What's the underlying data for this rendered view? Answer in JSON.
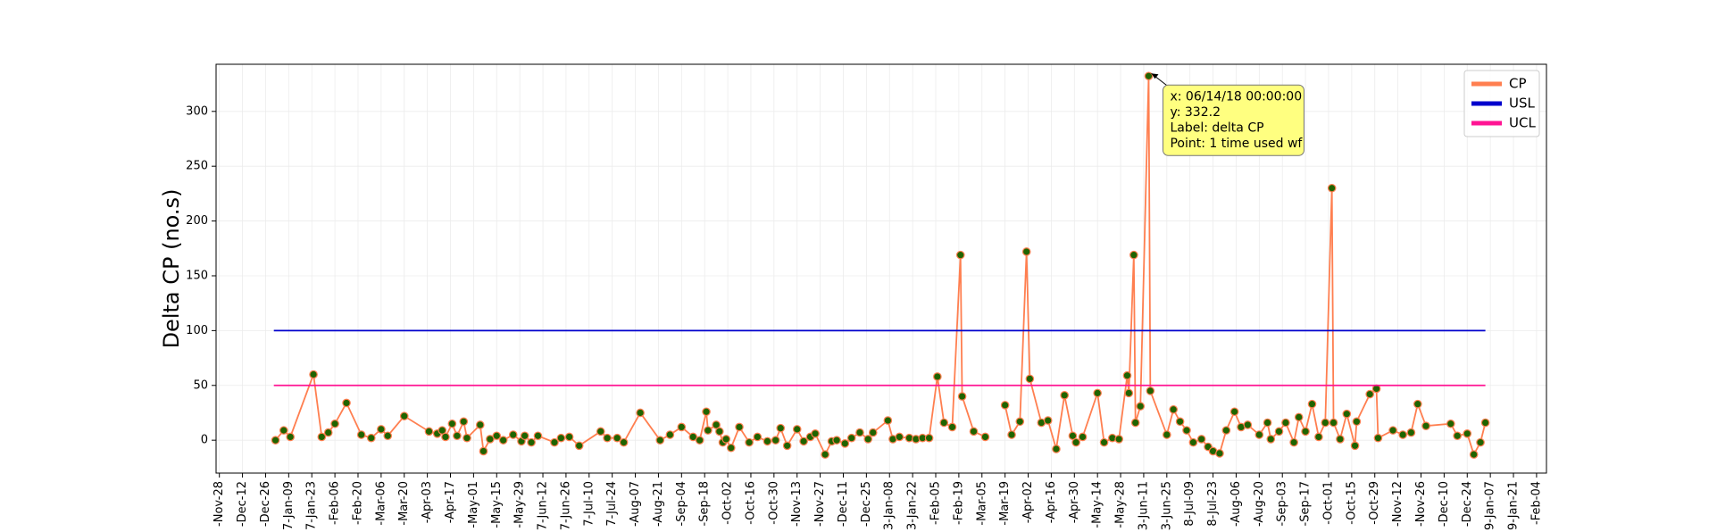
{
  "chart_data": {
    "type": "line",
    "y_label": "Delta CP (no.s)",
    "xlim": [
      -2,
      804
    ],
    "ylim": [
      -30,
      343
    ],
    "yticks": [
      0,
      50,
      100,
      150,
      200,
      250,
      300
    ],
    "xticks": [
      {
        "value": 0,
        "label": "-Nov-28"
      },
      {
        "value": 14,
        "label": "-Dec-12"
      },
      {
        "value": 28,
        "label": "-Dec-26"
      },
      {
        "value": 42,
        "label": "7-Jan-09"
      },
      {
        "value": 56,
        "label": "7-Jan-23"
      },
      {
        "value": 70,
        "label": "-Feb-06"
      },
      {
        "value": 84,
        "label": "-Feb-20"
      },
      {
        "value": 98,
        "label": "-Mar-06"
      },
      {
        "value": 112,
        "label": "-Mar-20"
      },
      {
        "value": 126,
        "label": "-Apr-03"
      },
      {
        "value": 140,
        "label": "-Apr-17"
      },
      {
        "value": 154,
        "label": "-May-01"
      },
      {
        "value": 168,
        "label": "-May-15"
      },
      {
        "value": 182,
        "label": "-May-29"
      },
      {
        "value": 196,
        "label": "7-Jun-12"
      },
      {
        "value": 210,
        "label": "7-Jun-26"
      },
      {
        "value": 224,
        "label": "7-Jul-10"
      },
      {
        "value": 238,
        "label": "7-Jul-24"
      },
      {
        "value": 252,
        "label": "-Aug-07"
      },
      {
        "value": 266,
        "label": "-Aug-21"
      },
      {
        "value": 280,
        "label": "-Sep-04"
      },
      {
        "value": 294,
        "label": "-Sep-18"
      },
      {
        "value": 308,
        "label": "-Oct-02"
      },
      {
        "value": 322,
        "label": "-Oct-16"
      },
      {
        "value": 336,
        "label": "-Oct-30"
      },
      {
        "value": 350,
        "label": "-Nov-13"
      },
      {
        "value": 364,
        "label": "-Nov-27"
      },
      {
        "value": 378,
        "label": "-Dec-11"
      },
      {
        "value": 392,
        "label": "-Dec-25"
      },
      {
        "value": 406,
        "label": "3-Jan-08"
      },
      {
        "value": 420,
        "label": "3-Jan-22"
      },
      {
        "value": 434,
        "label": "-Feb-05"
      },
      {
        "value": 448,
        "label": "-Feb-19"
      },
      {
        "value": 462,
        "label": "-Mar-05"
      },
      {
        "value": 476,
        "label": "-Mar-19"
      },
      {
        "value": 490,
        "label": "-Apr-02"
      },
      {
        "value": 504,
        "label": "-Apr-16"
      },
      {
        "value": 518,
        "label": "-Apr-30"
      },
      {
        "value": 532,
        "label": "-May-14"
      },
      {
        "value": 546,
        "label": "-May-28"
      },
      {
        "value": 560,
        "label": "3-Jun-11"
      },
      {
        "value": 574,
        "label": "3-Jun-25"
      },
      {
        "value": 588,
        "label": "8-Jul-09"
      },
      {
        "value": 602,
        "label": "8-Jul-23"
      },
      {
        "value": 616,
        "label": "-Aug-06"
      },
      {
        "value": 630,
        "label": "-Aug-20"
      },
      {
        "value": 644,
        "label": "-Sep-03"
      },
      {
        "value": 658,
        "label": "-Sep-17"
      },
      {
        "value": 672,
        "label": "-Oct-01"
      },
      {
        "value": 686,
        "label": "-Oct-15"
      },
      {
        "value": 700,
        "label": "-Oct-29"
      },
      {
        "value": 714,
        "label": "-Nov-12"
      },
      {
        "value": 728,
        "label": "-Nov-26"
      },
      {
        "value": 742,
        "label": "-Dec-10"
      },
      {
        "value": 756,
        "label": "-Dec-24"
      },
      {
        "value": 770,
        "label": "9-Jan-07"
      },
      {
        "value": 784,
        "label": "9-Jan-21"
      },
      {
        "value": 798,
        "label": "-Feb-04"
      }
    ],
    "grid": true,
    "legend": "upper right",
    "marker_color": "#1f6400",
    "series": [
      {
        "name": "CP",
        "color": "#ff7f50",
        "markers": true,
        "x": [
          34,
          39,
          43,
          57,
          62,
          66,
          70,
          77,
          86,
          92,
          98,
          102,
          112,
          127,
          132,
          135,
          137,
          141,
          144,
          148,
          150,
          158,
          160,
          164,
          168,
          172,
          178,
          183,
          185,
          189,
          193,
          203,
          207,
          212,
          218,
          231,
          235,
          241,
          245,
          255,
          267,
          273,
          280,
          287,
          291,
          295,
          296,
          301,
          303,
          305,
          307,
          310,
          315,
          321,
          326,
          332,
          337,
          340,
          344,
          350,
          354,
          358,
          361,
          367,
          371,
          374,
          379,
          383,
          388,
          393,
          396,
          405,
          408,
          412,
          418,
          422,
          426,
          430,
          435,
          439,
          444,
          449,
          450,
          457,
          464,
          null,
          476,
          480,
          485,
          489,
          491,
          498,
          502,
          507,
          512,
          517,
          519,
          523,
          532,
          536,
          541,
          545,
          550,
          551,
          554,
          555,
          558,
          563,
          564,
          574,
          578,
          582,
          586,
          590,
          595,
          599,
          602,
          606,
          610,
          615,
          619,
          623,
          630,
          635,
          637,
          642,
          646,
          651,
          654,
          658,
          662,
          666,
          670,
          674,
          675,
          679,
          683,
          688,
          689,
          697,
          701,
          702,
          711,
          717,
          722,
          726,
          731,
          746,
          750,
          756,
          760,
          764,
          767
        ],
        "values": [
          0,
          9,
          3,
          60,
          3,
          7,
          15,
          34,
          5,
          2,
          10,
          4,
          22,
          8,
          6,
          9,
          3,
          15,
          4,
          17,
          2,
          14,
          -10,
          1,
          4,
          0,
          5,
          -1,
          4,
          -2,
          4,
          -2,
          2,
          3,
          -5,
          8,
          2,
          2,
          -2,
          25,
          0,
          5,
          12,
          3,
          0,
          26,
          9,
          14,
          8,
          -2,
          1,
          -7,
          12,
          -2,
          3,
          -1,
          0,
          11,
          -5,
          10,
          -1,
          3,
          6,
          -13,
          -1,
          0,
          -3,
          2,
          7,
          1,
          7,
          18,
          1,
          3,
          2,
          1,
          2,
          2,
          58,
          16,
          12,
          169,
          40,
          8,
          3,
          null,
          32,
          5,
          17,
          172,
          56,
          16,
          18,
          -8,
          41,
          4,
          -2,
          3,
          43,
          -2,
          2,
          1,
          59,
          43,
          169,
          16,
          31,
          332.2,
          45,
          5,
          28,
          17,
          9,
          -2,
          1,
          -6,
          -10,
          -12,
          9,
          26,
          12,
          14,
          5,
          16,
          1,
          8,
          16,
          -2,
          21,
          8,
          33,
          3,
          16,
          230,
          16,
          1,
          24,
          -5,
          17,
          42,
          47,
          2,
          9,
          5,
          7,
          33,
          13,
          15,
          4,
          6,
          -13,
          -2,
          16
        ]
      },
      {
        "name": "USL",
        "color": "#0000cd",
        "markers": false,
        "x": [
          33,
          767
        ],
        "values": [
          100,
          100
        ]
      },
      {
        "name": "UCL",
        "color": "#ff1493",
        "markers": false,
        "x": [
          33,
          767
        ],
        "values": [
          50,
          50
        ]
      }
    ],
    "annotation": {
      "series": 0,
      "point": 107,
      "lines": [
        "x: 06/14/18 00:00:00",
        "y: 332.2",
        "Label: delta CP",
        "Point: 1 time used wf"
      ]
    }
  }
}
